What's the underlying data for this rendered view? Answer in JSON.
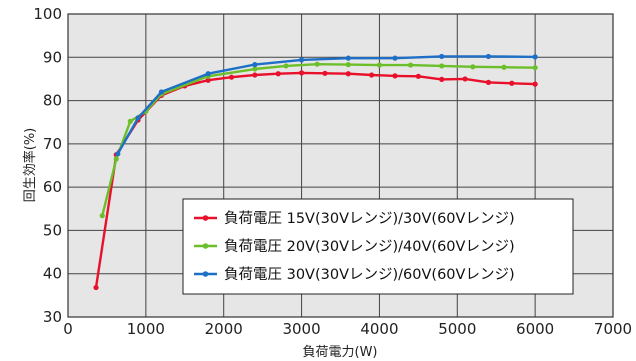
{
  "chart_data": {
    "type": "line",
    "title": "",
    "xlabel": "負荷電力(W)",
    "ylabel": "回生効率(%)",
    "xlim": [
      0,
      7000
    ],
    "ylim": [
      30,
      100
    ],
    "xticks": [
      "0",
      "1000",
      "2000",
      "3000",
      "4000",
      "5000",
      "6000",
      "7000"
    ],
    "yticks": [
      "30",
      "40",
      "50",
      "60",
      "70",
      "80",
      "90",
      "100"
    ],
    "grid": true,
    "legend_position": "bottom-right",
    "series": [
      {
        "name": "負荷電圧 15V(30Vレンジ)/30V(60Vレンジ)",
        "color": "#e8102a",
        "x": [
          360,
          620,
          900,
          1200,
          1500,
          1800,
          2100,
          2400,
          2700,
          3000,
          3300,
          3600,
          3900,
          4200,
          4500,
          4800,
          5100,
          5400,
          5700,
          6000
        ],
        "y": [
          36.8,
          67.5,
          75.5,
          81.2,
          83.4,
          84.7,
          85.4,
          85.9,
          86.2,
          86.4,
          86.3,
          86.2,
          85.9,
          85.7,
          85.6,
          84.9,
          85.0,
          84.2,
          84.0,
          83.8
        ]
      },
      {
        "name": "負荷電圧 20V(30Vレンジ)/40V(60Vレンジ)",
        "color": "#6cbf2a",
        "x": [
          440,
          620,
          800,
          1000,
          1200,
          1800,
          2400,
          2800,
          3200,
          3600,
          4000,
          4400,
          4800,
          5200,
          5600,
          6000
        ],
        "y": [
          53.4,
          66.5,
          75.2,
          77.5,
          81.5,
          85.6,
          87.3,
          88.0,
          88.4,
          88.3,
          88.2,
          88.2,
          88.0,
          87.8,
          87.7,
          87.6
        ]
      },
      {
        "name": "負荷電圧 30V(30Vレンジ)/60V(60Vレンジ)",
        "color": "#1e6fc6",
        "x": [
          640,
          900,
          1200,
          1800,
          2400,
          3000,
          3600,
          4200,
          4800,
          5400,
          6000
        ],
        "y": [
          67.7,
          76.0,
          82.0,
          86.2,
          88.3,
          89.4,
          89.8,
          89.8,
          90.2,
          90.2,
          90.1
        ]
      }
    ]
  }
}
